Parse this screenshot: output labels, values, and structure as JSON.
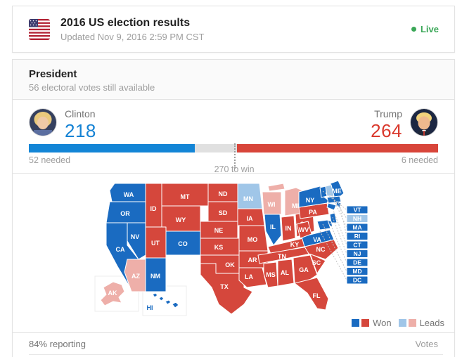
{
  "header": {
    "title": "2016 US election results",
    "updated": "Updated Nov 9, 2016 2:59 PM CST",
    "live_label": "Live"
  },
  "icons": {
    "flag": "us-flag-icon",
    "live": "live-dot-icon",
    "clinton_avatar": "clinton-avatar",
    "trump_avatar": "trump-avatar"
  },
  "race": {
    "title": "President",
    "subtitle": "56 electoral votes still available"
  },
  "candidates": {
    "clinton": {
      "name": "Clinton",
      "value": "218",
      "needed": "52 needed"
    },
    "trump": {
      "name": "Trump",
      "value": "264",
      "needed": "6 needed"
    }
  },
  "bar": {
    "threshold_label": "270 to win"
  },
  "legend": {
    "won_label": "Won",
    "leads_label": "Leads"
  },
  "footer": {
    "reporting": "84% reporting",
    "votes_label": "Votes"
  },
  "colors": {
    "won_dem": "#1a6bc1",
    "won_rep": "#d5473c",
    "leads_dem": "#a0c6e8",
    "leads_rep": "#eeafa9",
    "bar_dem": "#1385d6",
    "bar_rep": "#d8453a",
    "num_dem": "#1482d4",
    "num_rep": "#da392d",
    "live_green": "#3aa757"
  },
  "chart_data": {
    "type": "choropleth-map",
    "title": "2016 US election results — President",
    "bar": {
      "clinton": 218,
      "trump": 264,
      "total": 538,
      "threshold": 270
    },
    "legend_entries": [
      "Won",
      "Leads"
    ],
    "callouts": [
      "VT",
      "NH",
      "MA",
      "RI",
      "CT",
      "NJ",
      "DE",
      "MD",
      "DC"
    ],
    "states": {
      "WA": "won-dem",
      "OR": "won-dem",
      "CA": "won-dem",
      "NV": "won-dem",
      "ID": "won-rep",
      "MT": "won-rep",
      "WY": "won-rep",
      "UT": "won-rep",
      "CO": "won-dem",
      "AZ": "leads-rep",
      "NM": "won-dem",
      "ND": "won-rep",
      "SD": "won-rep",
      "NE": "won-rep",
      "KS": "won-rep",
      "OK": "won-rep",
      "TX": "won-rep",
      "MN": "leads-dem",
      "IA": "won-rep",
      "MO": "won-rep",
      "AR": "won-rep",
      "LA": "won-rep",
      "WI": "leads-rep",
      "MI": "leads-rep",
      "IL": "won-dem",
      "IN": "won-rep",
      "OH": "won-rep",
      "KY": "won-rep",
      "TN": "won-rep",
      "MS": "won-rep",
      "AL": "won-rep",
      "GA": "won-rep",
      "FL": "won-rep",
      "SC": "won-rep",
      "NC": "won-rep",
      "VA": "won-dem",
      "WV": "won-rep",
      "PA": "won-rep",
      "NY": "won-dem",
      "ME": "won-dem",
      "VT": "won-dem",
      "NH": "leads-dem",
      "MA": "won-dem",
      "RI": "won-dem",
      "CT": "won-dem",
      "NJ": "won-dem",
      "DE": "won-dem",
      "MD": "won-dem",
      "DC": "won-dem",
      "AK": "leads-rep",
      "HI": "won-dem"
    }
  }
}
